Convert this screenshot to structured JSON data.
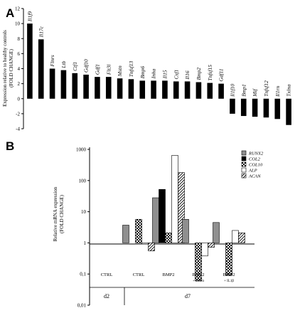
{
  "chart_data": [
    {
      "type": "bar",
      "panel_label": "A",
      "ylabel_line1": "Expression relative to healthy controls",
      "ylabel_line2": "(FOLD CHANGE)",
      "ylim": [
        -4,
        12
      ],
      "yticks": [
        "-4",
        "-2",
        "0",
        "2",
        "4",
        "6",
        "8",
        "10",
        "12"
      ],
      "grid": false,
      "bar_color": "#000000",
      "categories": [
        "Il1f9",
        "Il17c",
        "Flnrs",
        "Ltb",
        "Ctf1",
        "Gdf10",
        "Gdf1",
        "Flt3l",
        "Mstn",
        "Tnfsf13",
        "Bmp6",
        "Inha",
        "Il15",
        "Csf1",
        "Il16",
        "Bmp2",
        "Tnfsf15",
        "Gdf11",
        "Il1f10",
        "Bmp1",
        "Mif",
        "Tnfsf12",
        "Il1rn",
        "Txlna"
      ],
      "values": [
        10.0,
        7.9,
        4.0,
        3.8,
        3.4,
        3.2,
        2.9,
        2.9,
        2.7,
        2.6,
        2.4,
        2.4,
        2.4,
        2.3,
        2.3,
        2.2,
        2.1,
        2.0,
        -2.0,
        -2.3,
        -2.4,
        -2.5,
        -2.7,
        -3.5
      ]
    },
    {
      "type": "bar",
      "panel_label": "B",
      "ylabel_line1": "Relative mRNA expression",
      "ylabel_line2": "(FOLD CHANGE)",
      "yscale": "log",
      "ylim": [
        0.01,
        1000
      ],
      "baseline": 1,
      "yticks": [
        "1000",
        "100",
        "10",
        "1",
        "0,1",
        "0,01"
      ],
      "grid": false,
      "legend_position": "top-right",
      "series": [
        {
          "name": "RUNX2",
          "fill": "grey",
          "values": [
            null,
            3.7,
            28,
            5.7,
            4.5
          ]
        },
        {
          "name": "COL2",
          "fill": "black",
          "values": [
            null,
            null,
            52,
            null,
            null
          ]
        },
        {
          "name": "COL10",
          "fill": "checker",
          "values": [
            null,
            5.7,
            2.1,
            0.06,
            0.09
          ]
        },
        {
          "name": "ALP",
          "fill": "white",
          "values": [
            null,
            0.92,
            640,
            0.38,
            2.5
          ]
        },
        {
          "name": "ACAN",
          "fill": "hatch",
          "values": [
            null,
            0.55,
            180,
            0.72,
            2.1
          ]
        }
      ],
      "groups": [
        {
          "label": "CTRL",
          "sublabel": ""
        },
        {
          "label": "CTRL",
          "sublabel": ""
        },
        {
          "label": "BMP2",
          "sublabel": ""
        },
        {
          "label": "BMP2",
          "sublabel": "+ TNFα"
        },
        {
          "label": "BMP2",
          "sublabel": "+ IL1β"
        }
      ],
      "day_labels": [
        "d2",
        "d7"
      ]
    }
  ]
}
